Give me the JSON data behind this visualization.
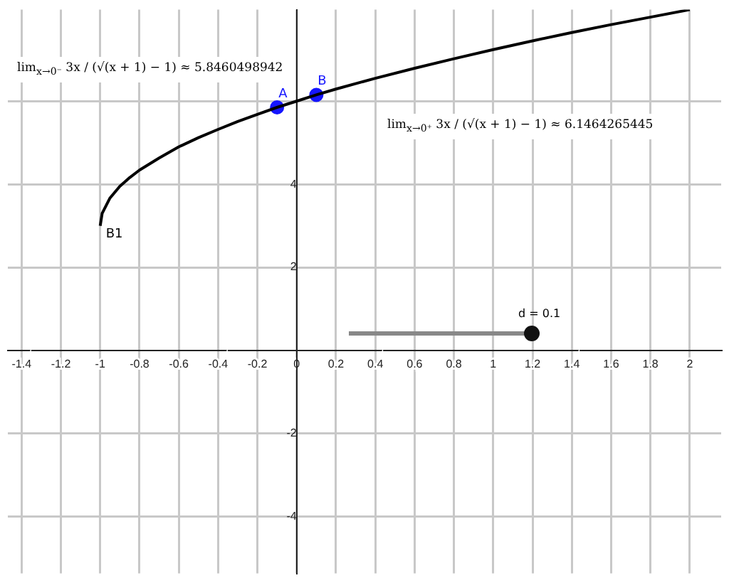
{
  "chart_data": {
    "type": "line",
    "xlim": [
      -1.47,
      2.16
    ],
    "ylim": [
      -5.36,
      8.2
    ],
    "xticks": [
      -1.4,
      -1.2,
      -1,
      -0.8,
      -0.6,
      -0.4,
      -0.2,
      {
        "value": 0,
        "label": "0"
      },
      0.2,
      0.4,
      0.6,
      0.8,
      1,
      1.2,
      1.4,
      1.6,
      1.8,
      2
    ],
    "yticks": [
      -4,
      -2,
      2,
      4,
      {
        "value": 6,
        "label": null
      }
    ],
    "grid": true,
    "legend": false,
    "series": [
      {
        "name": "B1",
        "color": "#000000",
        "marker": "none",
        "x": [
          -1,
          -0.99,
          -0.95,
          -0.9,
          -0.85,
          -0.8,
          -0.7,
          -0.6,
          -0.5,
          -0.4,
          -0.3,
          -0.2,
          -0.1,
          0,
          0.1,
          0.2,
          0.4,
          0.6,
          0.8,
          1,
          1.2,
          1.4,
          1.6,
          1.8,
          2
        ],
        "values": [
          3,
          3.3,
          3.67,
          3.95,
          4.16,
          4.34,
          4.63,
          4.9,
          5.12,
          5.32,
          5.51,
          5.68,
          5.85,
          6,
          6.15,
          6.29,
          6.55,
          6.79,
          7.02,
          7.24,
          7.45,
          7.65,
          7.84,
          8.02,
          8.2
        ]
      },
      {
        "name": "A",
        "type": "scatter",
        "color": "#1515ff",
        "marker": "circle",
        "x": [
          -0.1
        ],
        "values": [
          5.85
        ]
      },
      {
        "name": "B",
        "type": "scatter",
        "color": "#1515ff",
        "marker": "circle",
        "x": [
          0.1
        ],
        "values": [
          6.15
        ]
      }
    ],
    "annotations": [
      "lim$_{x→0⁻}$ 3x / (√(x + 1) − 1) ≈ 5.8460498942",
      "lim$_{x→0⁺}$ 3x / (√(x + 1) − 1) ≈ 6.1464265445",
      "d = 0.1"
    ]
  }
}
